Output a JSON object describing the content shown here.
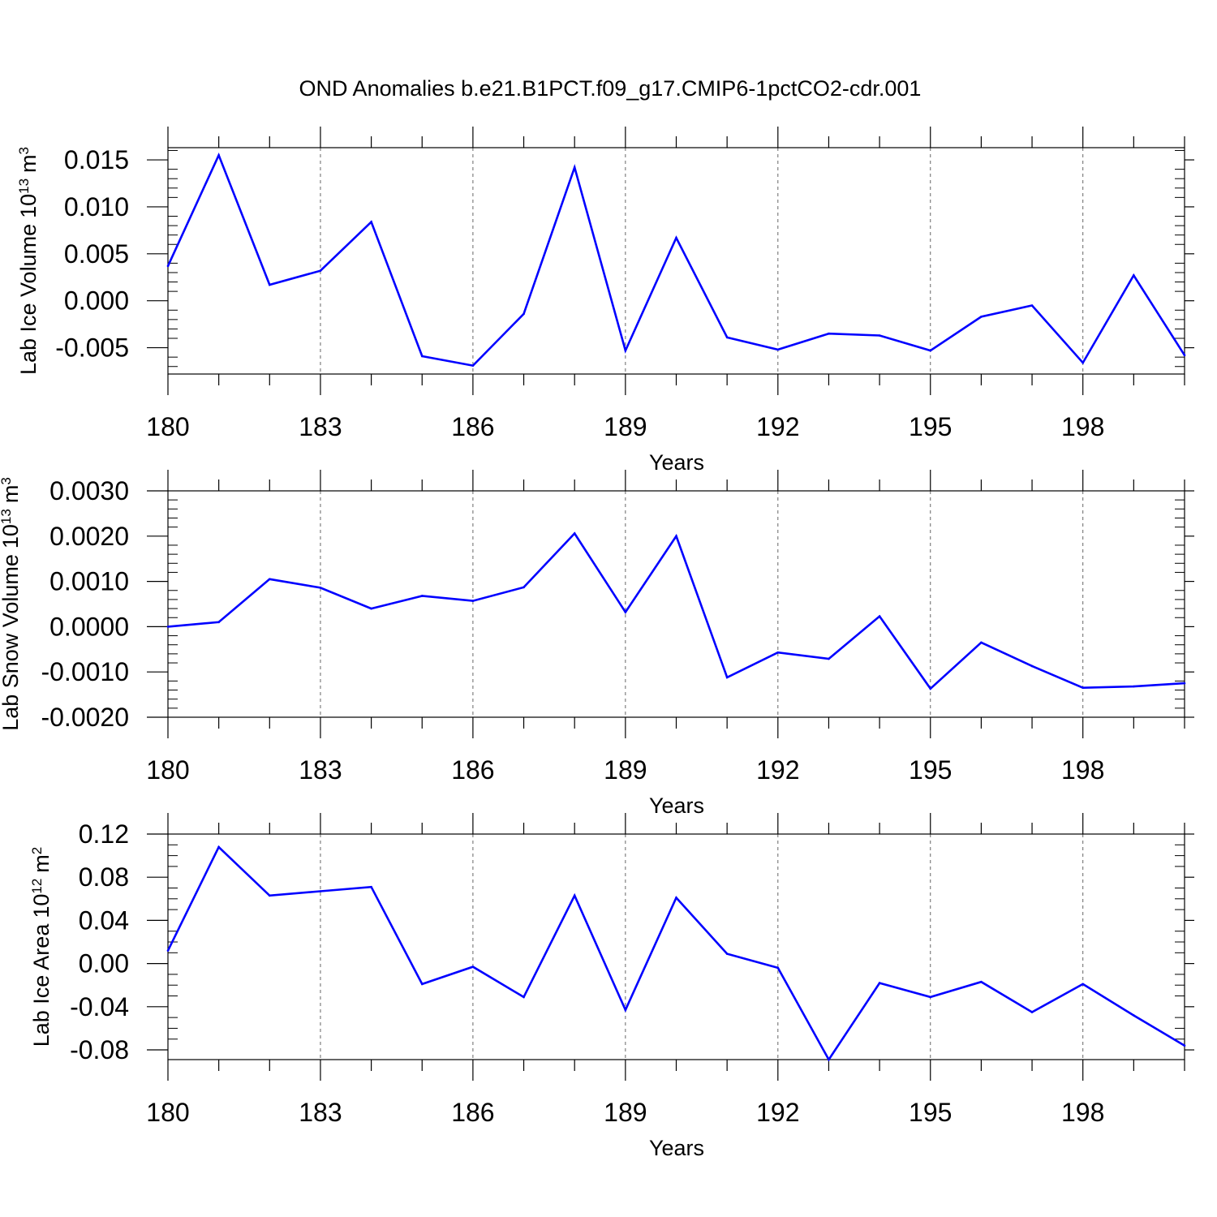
{
  "title": "OND Anomalies b.e21.B1PCT.f09_g17.CMIP6-1pctCO2-cdr.001",
  "colors": {
    "line": "#0000ff",
    "axis": "#000000",
    "grid": "#666666",
    "background": "#ffffff"
  },
  "chart_data": [
    {
      "type": "line",
      "ylabel": "Lab Ice Volume",
      "yunit_base": "10",
      "yunit_exp": "13",
      "yunit_name": "m",
      "yunit_power": "3",
      "xlabel": "Years",
      "xlim": [
        180,
        200
      ],
      "ylim": [
        -0.0078,
        0.0163
      ],
      "x_ticks": [
        "180",
        "183",
        "186",
        "189",
        "192",
        "195",
        "198"
      ],
      "y_ticks": [
        "0.015",
        "0.010",
        "0.005",
        "0.000",
        "-0.005"
      ],
      "y_tick_values": [
        0.015,
        0.01,
        0.005,
        0.0,
        -0.005
      ],
      "y_minor_step": 0.001,
      "grid": "vertical dashed at major x ticks",
      "series": [
        {
          "name": "Lab Ice Volume",
          "x": [
            180,
            181,
            182,
            183,
            184,
            185,
            186,
            187,
            188,
            189,
            190,
            191,
            192,
            193,
            194,
            195,
            196,
            197,
            198,
            199,
            200
          ],
          "values": [
            0.0037,
            0.0155,
            0.0017,
            0.0032,
            0.0084,
            -0.0059,
            -0.0069,
            -0.0014,
            0.0142,
            -0.0053,
            0.0067,
            -0.0039,
            -0.0052,
            -0.0035,
            -0.0037,
            -0.0053,
            -0.0017,
            -0.0005,
            -0.0066,
            0.0027,
            -0.0058
          ]
        }
      ]
    },
    {
      "type": "line",
      "ylabel": "Lab Snow Volume",
      "yunit_base": "10",
      "yunit_exp": "13",
      "yunit_name": "m",
      "yunit_power": "3",
      "xlabel": "Years",
      "xlim": [
        180,
        200
      ],
      "ylim": [
        -0.002,
        0.003
      ],
      "x_ticks": [
        "180",
        "183",
        "186",
        "189",
        "192",
        "195",
        "198"
      ],
      "y_ticks": [
        "0.0030",
        "0.0020",
        "0.0010",
        "0.0000",
        "-0.0010",
        "-0.0020"
      ],
      "y_tick_values": [
        0.003,
        0.002,
        0.001,
        0.0,
        -0.001,
        -0.002
      ],
      "y_minor_step": 0.0002,
      "grid": "vertical dashed at major x ticks",
      "series": [
        {
          "name": "Lab Snow Volume",
          "x": [
            180,
            181,
            182,
            183,
            184,
            185,
            186,
            187,
            188,
            189,
            190,
            191,
            192,
            193,
            194,
            195,
            196,
            197,
            198,
            199,
            200
          ],
          "values": [
            0.0,
            0.0001,
            0.00105,
            0.00086,
            0.0004,
            0.00068,
            0.00057,
            0.00087,
            0.00206,
            0.00032,
            0.002,
            -0.00112,
            -0.00057,
            -0.00071,
            0.00023,
            -0.00137,
            -0.00035,
            -0.00087,
            -0.00135,
            -0.00132,
            -0.00125
          ]
        }
      ]
    },
    {
      "type": "line",
      "ylabel": "Lab Ice Area",
      "yunit_base": "10",
      "yunit_exp": "12",
      "yunit_name": "m",
      "yunit_power": "2",
      "xlabel": "Years",
      "xlim": [
        180,
        200
      ],
      "ylim": [
        -0.089,
        0.12
      ],
      "x_ticks": [
        "180",
        "183",
        "186",
        "189",
        "192",
        "195",
        "198"
      ],
      "y_ticks": [
        "0.12",
        "0.08",
        "0.04",
        "0.00",
        "-0.04",
        "-0.08"
      ],
      "y_tick_values": [
        0.12,
        0.08,
        0.04,
        0.0,
        -0.04,
        -0.08
      ],
      "y_minor_step": 0.01,
      "grid": "vertical dashed at major x ticks",
      "series": [
        {
          "name": "Lab Ice Area",
          "x": [
            180,
            181,
            182,
            183,
            184,
            185,
            186,
            187,
            188,
            189,
            190,
            191,
            192,
            193,
            194,
            195,
            196,
            197,
            198,
            199,
            200
          ],
          "values": [
            0.012,
            0.108,
            0.063,
            0.067,
            0.071,
            -0.019,
            -0.003,
            -0.031,
            0.063,
            -0.043,
            0.061,
            0.009,
            -0.004,
            -0.089,
            -0.018,
            -0.031,
            -0.017,
            -0.045,
            -0.019,
            -0.048,
            -0.076
          ]
        }
      ]
    }
  ]
}
